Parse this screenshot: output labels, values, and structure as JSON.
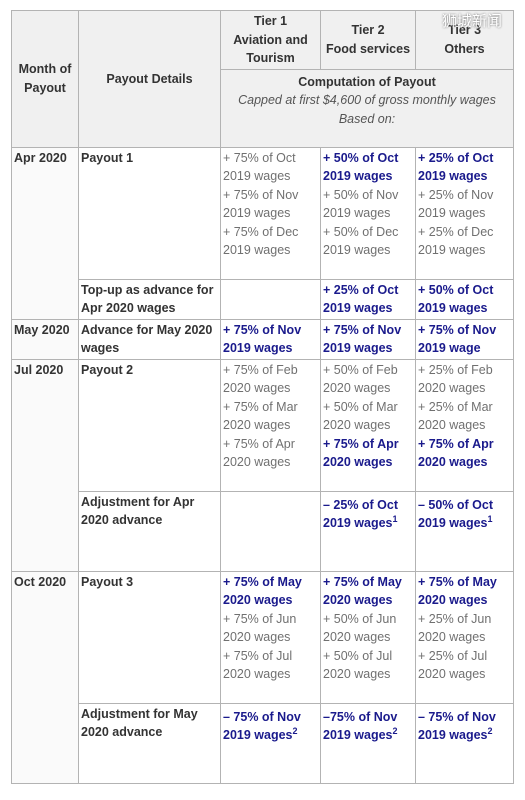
{
  "header": {
    "month": "Month of Payout",
    "details": "Payout Details",
    "tiers": [
      {
        "label": "Tier 1",
        "name": "Aviation and Tourism"
      },
      {
        "label": "Tier 2",
        "name": "Food services"
      },
      {
        "label": "Tier 3",
        "name": "Others"
      }
    ],
    "computation": {
      "title": "Computation of Payout",
      "note": "Capped at first $4,600 of gross monthly wages Based on:"
    }
  },
  "groups": [
    {
      "month": "Apr 2020",
      "items": [
        {
          "details": "Payout 1",
          "cells": [
            [
              {
                "text": "+ 75% of Oct 2019 wages",
                "emphasis": false
              },
              {
                "text": "+ 75% of Nov 2019 wages",
                "emphasis": false
              },
              {
                "text": "+ 75% of Dec 2019 wages",
                "emphasis": false
              }
            ],
            [
              {
                "text": "+ 50% of Oct 2019 wages",
                "emphasis": true
              },
              {
                "text": "+ 50% of Nov 2019 wages",
                "emphasis": false
              },
              {
                "text": "+ 50% of Dec 2019 wages",
                "emphasis": false
              }
            ],
            [
              {
                "text": "+ 25% of Oct 2019 wages",
                "emphasis": true
              },
              {
                "text": "+ 25% of Nov 2019 wages",
                "emphasis": false
              },
              {
                "text": "+ 25% of Dec 2019 wages",
                "emphasis": false
              }
            ]
          ]
        },
        {
          "details": "Top-up as advance for Apr 2020 wages",
          "cells": [
            [],
            [
              {
                "text": "+ 25% of Oct 2019 wages",
                "emphasis": true
              }
            ],
            [
              {
                "text": "+ 50% of Oct 2019 wages",
                "emphasis": true
              }
            ]
          ]
        }
      ]
    },
    {
      "month": "May 2020",
      "items": [
        {
          "details": "Advance for May 2020 wages",
          "cells": [
            [
              {
                "text": "+ 75% of Nov 2019 wages",
                "emphasis": true
              }
            ],
            [
              {
                "text": "+ 75% of Nov 2019 wages",
                "emphasis": true
              }
            ],
            [
              {
                "text": "+ 75% of Nov 2019 wage",
                "emphasis": true
              }
            ]
          ]
        }
      ]
    },
    {
      "month": "Jul 2020",
      "items": [
        {
          "details": "Payout 2",
          "cells": [
            [
              {
                "text": "+ 75% of Feb 2020 wages",
                "emphasis": false
              },
              {
                "text": "+ 75% of Mar 2020 wages",
                "emphasis": false
              },
              {
                "text": "+ 75% of Apr 2020 wages",
                "emphasis": false
              }
            ],
            [
              {
                "text": "+ 50% of Feb 2020 wages",
                "emphasis": false
              },
              {
                "text": "+ 50% of Mar 2020 wages",
                "emphasis": false
              },
              {
                "text": "+ 75% of Apr 2020 wages",
                "emphasis": true
              }
            ],
            [
              {
                "text": "+ 25% of Feb 2020 wages",
                "emphasis": false
              },
              {
                "text": "+ 25% of Mar 2020 wages",
                "emphasis": false
              },
              {
                "text": "+ 75% of Apr 2020 wages",
                "emphasis": true
              }
            ]
          ]
        },
        {
          "details": "Adjustment for Apr 2020 advance",
          "cells": [
            [],
            [
              {
                "text": "– 25% of Oct 2019 wages",
                "emphasis": true,
                "note": "1"
              }
            ],
            [
              {
                "text": "– 50% of Oct 2019 wages",
                "emphasis": true,
                "note": "1"
              }
            ]
          ]
        }
      ]
    },
    {
      "month": "Oct 2020",
      "items": [
        {
          "details": "Payout 3",
          "cells": [
            [
              {
                "text": "+ 75% of May 2020 wages",
                "emphasis": true
              },
              {
                "text": "+ 75% of Jun 2020 wages",
                "emphasis": false
              },
              {
                "text": "+ 75% of Jul 2020 wages",
                "emphasis": false
              }
            ],
            [
              {
                "text": "+ 75% of May 2020 wages",
                "emphasis": true
              },
              {
                "text": "+ 50% of Jun 2020 wages",
                "emphasis": false
              },
              {
                "text": "+ 50% of Jul 2020 wages",
                "emphasis": false
              }
            ],
            [
              {
                "text": "+ 75% of May 2020 wages",
                "emphasis": true
              },
              {
                "text": "+ 25% of Jun 2020 wages",
                "emphasis": false
              },
              {
                "text": "+ 25% of Jul 2020 wages",
                "emphasis": false
              }
            ]
          ]
        },
        {
          "details": "Adjustment for May 2020 advance",
          "cells": [
            [
              {
                "text": "– 75% of Nov 2019 wages",
                "emphasis": true,
                "note": "2"
              }
            ],
            [
              {
                "text": "–75% of Nov 2019 wages",
                "emphasis": true,
                "note": "2"
              }
            ],
            [
              {
                "text": "– 75% of Nov 2019 wages",
                "emphasis": true,
                "note": "2"
              }
            ]
          ]
        }
      ]
    }
  ],
  "watermark": "狮城新闻"
}
